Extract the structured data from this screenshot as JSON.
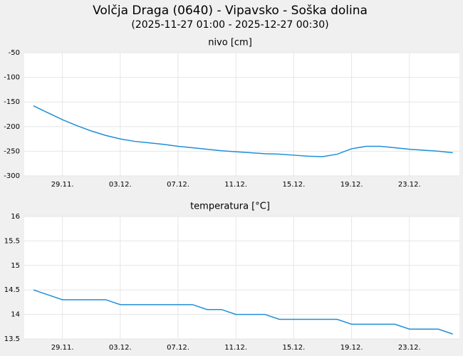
{
  "title": "Volčja Draga (0640) - Vipavsko - Soška dolina",
  "subtitle": "(2025-11-27 01:00 - 2025-12-27 00:30)",
  "chart_data": [
    {
      "type": "line",
      "title": "nivo [cm]",
      "categories": [
        null,
        null,
        "29.11.",
        null,
        null,
        null,
        "03.12.",
        null,
        null,
        null,
        "07.12.",
        null,
        null,
        null,
        "11.12.",
        null,
        null,
        null,
        "15.12.",
        null,
        null,
        null,
        "19.12.",
        null,
        null,
        null,
        "23.12.",
        null,
        null,
        null
      ],
      "values": [
        -158,
        -172,
        -186,
        -198,
        -209,
        -218,
        -225,
        -230,
        -233,
        -236,
        -240,
        -243,
        -246,
        -249,
        -251,
        -253,
        -255,
        -256,
        -258,
        -260,
        -261,
        -256,
        -245,
        -240,
        -240,
        -243,
        -246,
        -248,
        -250,
        -253
      ],
      "color": "#1f8fd8",
      "ylim": [
        -300,
        -50
      ],
      "yticks": [
        -300,
        -250,
        -200,
        -150,
        -100,
        -50
      ],
      "grid": true
    },
    {
      "type": "line",
      "title": "temperatura [°C]",
      "categories": [
        null,
        null,
        "29.11.",
        null,
        null,
        null,
        "03.12.",
        null,
        null,
        null,
        "07.12.",
        null,
        null,
        null,
        "11.12.",
        null,
        null,
        null,
        "15.12.",
        null,
        null,
        null,
        "19.12.",
        null,
        null,
        null,
        "23.12.",
        null,
        null,
        null
      ],
      "values": [
        14.5,
        14.4,
        14.3,
        14.3,
        14.3,
        14.3,
        14.2,
        14.2,
        14.2,
        14.2,
        14.2,
        14.2,
        14.1,
        14.1,
        14.0,
        14.0,
        14.0,
        13.9,
        13.9,
        13.9,
        13.9,
        13.9,
        13.8,
        13.8,
        13.8,
        13.8,
        13.7,
        13.7,
        13.7,
        13.6
      ],
      "color": "#1f8fd8",
      "ylim": [
        13.5,
        16
      ],
      "yticks": [
        13.5,
        14,
        14.5,
        15,
        15.5,
        16
      ],
      "grid": true
    }
  ]
}
